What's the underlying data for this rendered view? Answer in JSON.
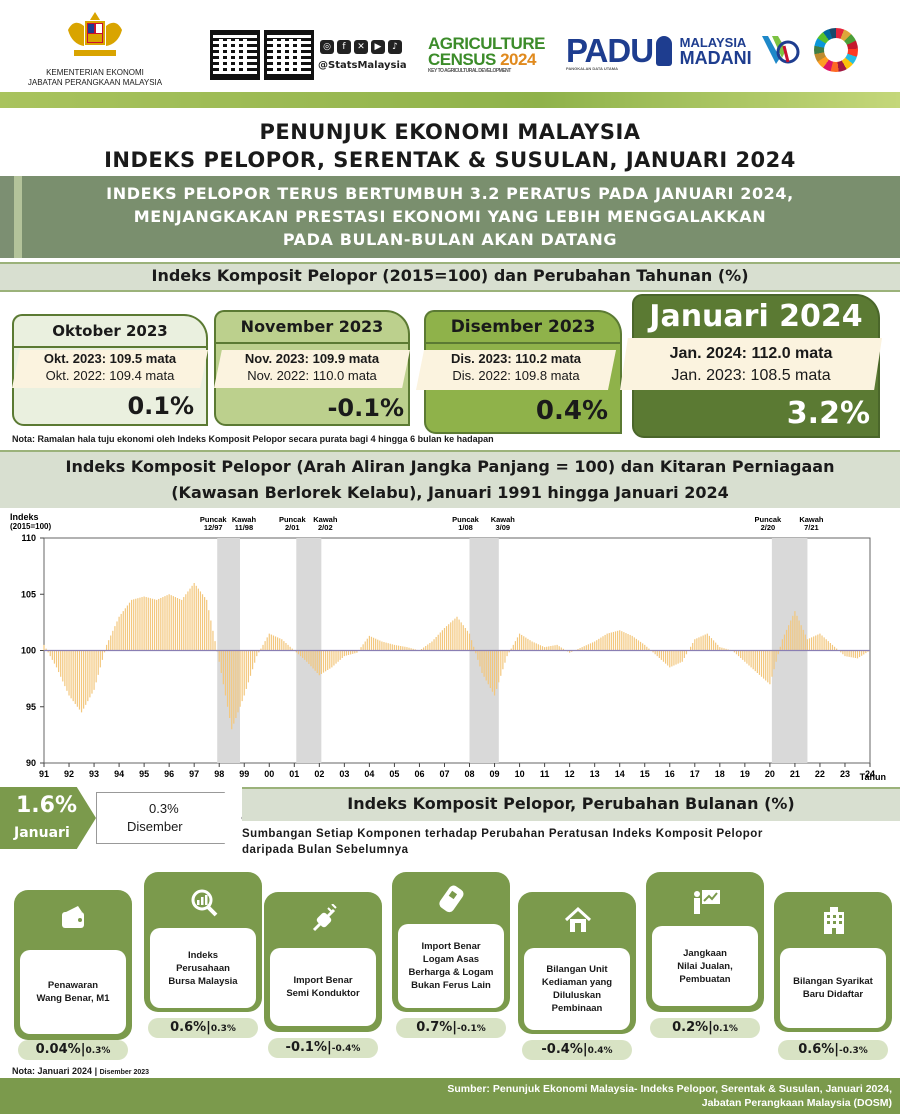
{
  "header": {
    "ministry_line1": "KEMENTERIAN EKONOMI",
    "ministry_line2": "JABATAN PERANGKAAN MALAYSIA",
    "social_handle": "@StatsMalaysia",
    "agri_line1": "AGRICULTURE",
    "agri_line2": "CENSUS",
    "agri_year": "2024",
    "agri_tag": "KEY TO AGRICULTURAL DEVELOPMENT",
    "padu": "PADU",
    "padu_tag": "PANGKALAN DATA UTAMA",
    "madani_1": "MALAYSIA",
    "madani_2": "MADANI",
    "icons": [
      "crest-icon",
      "qr-code",
      "instagram-icon",
      "facebook-icon",
      "x-icon",
      "youtube-icon",
      "tiktok-icon",
      "sdg-wheel-icon"
    ]
  },
  "title_line1": "PENUNJUK EKONOMI MALAYSIA",
  "title_line2": "INDEKS PELOPOR, SERENTAK & SUSULAN, JANUARI 2024",
  "highlight": [
    "INDEKS PELOPOR TERUS BERTUMBUH 3.2 PERATUS PADA JANUARI 2024,",
    "MENJANGKAKAN PRESTASI EKONOMI YANG LEBIH MENGGALAKKAN",
    "PADA BULAN-BULAN AKAN DATANG"
  ],
  "section1_title": "Indeks Komposit Pelopor (2015=100)  dan Perubahan Tahunan (%)",
  "cards": [
    {
      "month": "Oktober 2023",
      "cur": "Okt. 2023: 109.5 mata",
      "prev": "Okt. 2022: 109.4 mata",
      "pct": "0.1%",
      "pct_value": 0.1
    },
    {
      "month": "November 2023",
      "cur": "Nov. 2023: 109.9 mata",
      "prev": "Nov. 2022: 110.0 mata",
      "pct": "-0.1%",
      "pct_value": -0.1
    },
    {
      "month": "Disember 2023",
      "cur": "Dis. 2023: 110.2 mata",
      "prev": "Dis. 2022: 109.8 mata",
      "pct": "0.4%",
      "pct_value": 0.4
    },
    {
      "month": "Januari 2024",
      "cur": "Jan. 2024: 112.0 mata",
      "prev": "Jan. 2023: 108.5 mata",
      "pct": "3.2%",
      "pct_value": 3.2
    }
  ],
  "colors": {
    "dark_green": "#5b7a33",
    "mid_green": "#7b9a4c",
    "light_green": "#bcd08d",
    "pale_green": "#e7efd9",
    "cream": "#fbf3df",
    "bar": "#f3c77d",
    "shade": "#d9d9d9"
  },
  "nota1": "Nota: Ramalan hala tuju ekonomi oleh Indeks Komposit Pelopor secara purata bagi 4 hingga 6 bulan ke hadapan",
  "section2_line1": "Indeks Komposit Pelopor (Arah Aliran Jangka Panjang = 100) dan Kitaran Perniagaan",
  "section2_line2": "(Kawasan Berlorek Kelabu), Januari 1991 hingga Januari 2024",
  "chart_data": {
    "type": "bar",
    "ylabel_line1": "Indeks",
    "ylabel_line2": "(2015=100)",
    "xlabel": "Tahun",
    "ylim": [
      90,
      110
    ],
    "yticks": [
      90,
      95,
      100,
      105,
      110
    ],
    "xlim": [
      1991,
      2024
    ],
    "xticks": [
      "91",
      "92",
      "93",
      "94",
      "95",
      "96",
      "97",
      "98",
      "99",
      "00",
      "01",
      "02",
      "03",
      "04",
      "05",
      "06",
      "07",
      "08",
      "09",
      "10",
      "11",
      "12",
      "13",
      "14",
      "15",
      "16",
      "17",
      "18",
      "19",
      "20",
      "21",
      "22",
      "23",
      "24"
    ],
    "baseline": 100,
    "cycles": [
      {
        "peak_label": "Puncak",
        "peak_date": "12/97",
        "trough_label": "Kawah",
        "trough_date": "11/98",
        "start": 1997.92,
        "end": 1998.83
      },
      {
        "peak_label": "Puncak",
        "peak_date": "2/01",
        "trough_label": "Kawah",
        "trough_date": "2/02",
        "start": 2001.08,
        "end": 2002.08
      },
      {
        "peak_label": "Puncak",
        "peak_date": "1/08",
        "trough_label": "Kawah",
        "trough_date": "3/09",
        "start": 2008.0,
        "end": 2009.17
      },
      {
        "peak_label": "Puncak",
        "peak_date": "2/20",
        "trough_label": "Kawah",
        "trough_date": "7/21",
        "start": 2020.08,
        "end": 2021.5
      }
    ],
    "x": [
      1991.0,
      1991.5,
      1992.0,
      1992.5,
      1993.0,
      1993.5,
      1994.0,
      1994.5,
      1995.0,
      1995.5,
      1996.0,
      1996.5,
      1997.0,
      1997.5,
      1998.0,
      1998.5,
      1999.0,
      1999.5,
      2000.0,
      2000.5,
      2001.0,
      2001.5,
      2002.0,
      2002.5,
      2003.0,
      2003.5,
      2004.0,
      2004.5,
      2005.0,
      2005.5,
      2006.0,
      2006.5,
      2007.0,
      2007.5,
      2008.0,
      2008.5,
      2009.0,
      2009.5,
      2010.0,
      2010.5,
      2011.0,
      2011.5,
      2012.0,
      2012.5,
      2013.0,
      2013.5,
      2014.0,
      2014.5,
      2015.0,
      2015.5,
      2016.0,
      2016.5,
      2017.0,
      2017.5,
      2018.0,
      2018.5,
      2019.0,
      2019.5,
      2020.0,
      2020.5,
      2021.0,
      2021.5,
      2022.0,
      2022.5,
      2023.0,
      2023.5,
      2024.0
    ],
    "values": [
      100.5,
      98.5,
      96.0,
      94.5,
      96.5,
      100.5,
      103.0,
      104.5,
      104.8,
      104.5,
      105.0,
      104.5,
      106.0,
      104.5,
      99.0,
      93.0,
      96.0,
      99.5,
      101.5,
      101.0,
      100.0,
      99.0,
      97.8,
      98.5,
      99.5,
      99.8,
      101.3,
      100.8,
      100.5,
      100.3,
      100.0,
      100.8,
      102.0,
      103.0,
      101.5,
      98.0,
      96.0,
      99.5,
      101.5,
      100.8,
      100.3,
      100.5,
      99.8,
      100.3,
      100.8,
      101.5,
      101.8,
      101.3,
      100.5,
      99.5,
      98.5,
      99.0,
      101.0,
      101.5,
      100.3,
      100.0,
      99.0,
      98.0,
      97.0,
      101.0,
      103.5,
      101.0,
      101.5,
      100.5,
      99.5,
      99.3,
      100.0
    ]
  },
  "monthly": {
    "jan_value": "1.6%",
    "jan_label": "Januari",
    "dec_value": "0.3%",
    "dec_label": "Disember",
    "title": "Indeks Komposit Pelopor, Perubahan Bulanan (%)",
    "subtitle_line1": "Sumbangan Setiap Komponen terhadap Perubahan Peratusan Indeks Komposit Pelopor",
    "subtitle_line2": "daripada Bulan Sebelumnya"
  },
  "components": [
    {
      "name_line1": "Penawaran",
      "name_line2": "Wang Benar, M1",
      "name_line3": "",
      "name_line4": "",
      "value": "0.04%",
      "prev": "0.3%",
      "icon": "wallet-icon"
    },
    {
      "name_line1": "Indeks",
      "name_line2": "Perusahaan",
      "name_line3": "Bursa Malaysia",
      "name_line4": "",
      "value": "0.6%",
      "prev": "0.3%",
      "icon": "chart-magnifier-icon"
    },
    {
      "name_line1": "Import Benar",
      "name_line2": "Semi Konduktor",
      "name_line3": "",
      "name_line4": "",
      "value": "-0.1%",
      "prev": "-0.4%",
      "icon": "semiconductor-plug-icon"
    },
    {
      "name_line1": "Import Benar",
      "name_line2": "Logam Asas",
      "name_line3": "Berharga & Logam",
      "name_line4": "Bukan Ferus Lain",
      "value": "0.7%",
      "prev": "-0.1%",
      "icon": "metal-bar-icon"
    },
    {
      "name_line1": "Bilangan Unit",
      "name_line2": "Kediaman yang",
      "name_line3": "Diluluskan",
      "name_line4": "Pembinaan",
      "value": "-0.4%",
      "prev": "0.4%",
      "icon": "house-icon"
    },
    {
      "name_line1": "Jangkaan",
      "name_line2": "Nilai Jualan,",
      "name_line3": "Pembuatan",
      "name_line4": "",
      "value": "0.2%",
      "prev": "0.1%",
      "icon": "presentation-icon"
    },
    {
      "name_line1": "Bilangan Syarikat",
      "name_line2": "Baru Didaftar",
      "name_line3": "",
      "name_line4": "",
      "value": "0.6%",
      "prev": "-0.3%",
      "icon": "building-icon"
    }
  ],
  "nota2_main": "Nota: Januari  2024",
  "nota2_sep": "|",
  "nota2_small": "Disember  2023",
  "source_line1": "Sumber: Penunjuk Ekonomi Malaysia- Indeks Pelopor, Serentak & Susulan, Januari 2024,",
  "source_line2": "Jabatan Perangkaan Malaysia (DOSM)"
}
